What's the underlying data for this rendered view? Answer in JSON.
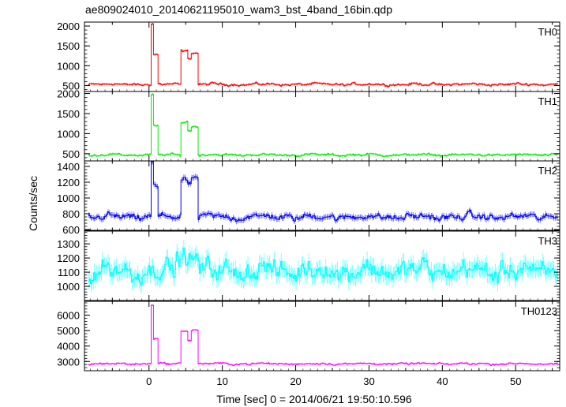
{
  "chart_data": {
    "type": "line",
    "title": "ae809024010_20140621195010_wam3_bst_4band_16bin.qdp",
    "xlabel": "Time [sec] 0 = 2014/06/21 19:50:10.596",
    "ylabel": "Counts/sec",
    "xlim": [
      -8.8,
      56.0
    ],
    "x_ticks": [
      0,
      10,
      20,
      30,
      40,
      50
    ],
    "grid": false,
    "legend": "none",
    "panels": [
      {
        "label": "TH0",
        "color": "#ff0000",
        "ylim": [
          350,
          2100
        ],
        "y_ticks": [
          500,
          1000,
          1500,
          2000
        ],
        "baseline": 530,
        "noise": 30,
        "features": [
          {
            "start": 0.2,
            "end": 0.6,
            "value": 2050
          },
          {
            "start": 0.6,
            "end": 1.2,
            "value": 1270
          },
          {
            "start": 4.2,
            "end": 5.2,
            "value": 1380
          },
          {
            "start": 5.2,
            "end": 5.7,
            "value": 1200
          },
          {
            "start": 5.7,
            "end": 6.6,
            "value": 1320
          }
        ]
      },
      {
        "label": "TH1",
        "color": "#00ee00",
        "ylim": [
          320,
          2050
        ],
        "y_ticks": [
          500,
          1000,
          1500,
          2000
        ],
        "baseline": 470,
        "noise": 28,
        "features": [
          {
            "start": 0.2,
            "end": 0.6,
            "value": 1950
          },
          {
            "start": 0.6,
            "end": 1.2,
            "value": 1180
          },
          {
            "start": 4.2,
            "end": 5.2,
            "value": 1300
          },
          {
            "start": 5.2,
            "end": 5.7,
            "value": 1080
          },
          {
            "start": 5.7,
            "end": 6.6,
            "value": 1180
          }
        ]
      },
      {
        "label": "TH2",
        "color": "#0000ff",
        "ylim": [
          590,
          1470
        ],
        "y_ticks": [
          600,
          800,
          1000,
          1200,
          1400
        ],
        "baseline": 760,
        "noise": 40,
        "features": [
          {
            "start": 0.2,
            "end": 0.6,
            "value": 1440
          },
          {
            "start": 0.6,
            "end": 1.2,
            "value": 1140
          },
          {
            "start": 4.2,
            "end": 5.2,
            "value": 1240
          },
          {
            "start": 5.2,
            "end": 5.7,
            "value": 1150
          },
          {
            "start": 5.7,
            "end": 6.6,
            "value": 1270
          }
        ]
      },
      {
        "label": "TH3",
        "color": "#00ffff",
        "ylim": [
          900,
          1390
        ],
        "y_ticks": [
          1000,
          1100,
          1200,
          1300
        ],
        "baseline": 1110,
        "noise": 65,
        "features": [
          {
            "start": 3.5,
            "end": 6.8,
            "value": 1210
          }
        ]
      },
      {
        "label": "TH0123",
        "color": "#ff00ff",
        "ylim": [
          2400,
          6900
        ],
        "y_ticks": [
          3000,
          4000,
          5000,
          6000
        ],
        "baseline": 2850,
        "noise": 60,
        "features": [
          {
            "start": 0.2,
            "end": 0.6,
            "value": 6700
          },
          {
            "start": 0.6,
            "end": 1.2,
            "value": 4500
          },
          {
            "start": 4.2,
            "end": 5.2,
            "value": 5000
          },
          {
            "start": 5.2,
            "end": 5.7,
            "value": 4400
          },
          {
            "start": 5.7,
            "end": 6.6,
            "value": 5050
          }
        ]
      }
    ]
  }
}
